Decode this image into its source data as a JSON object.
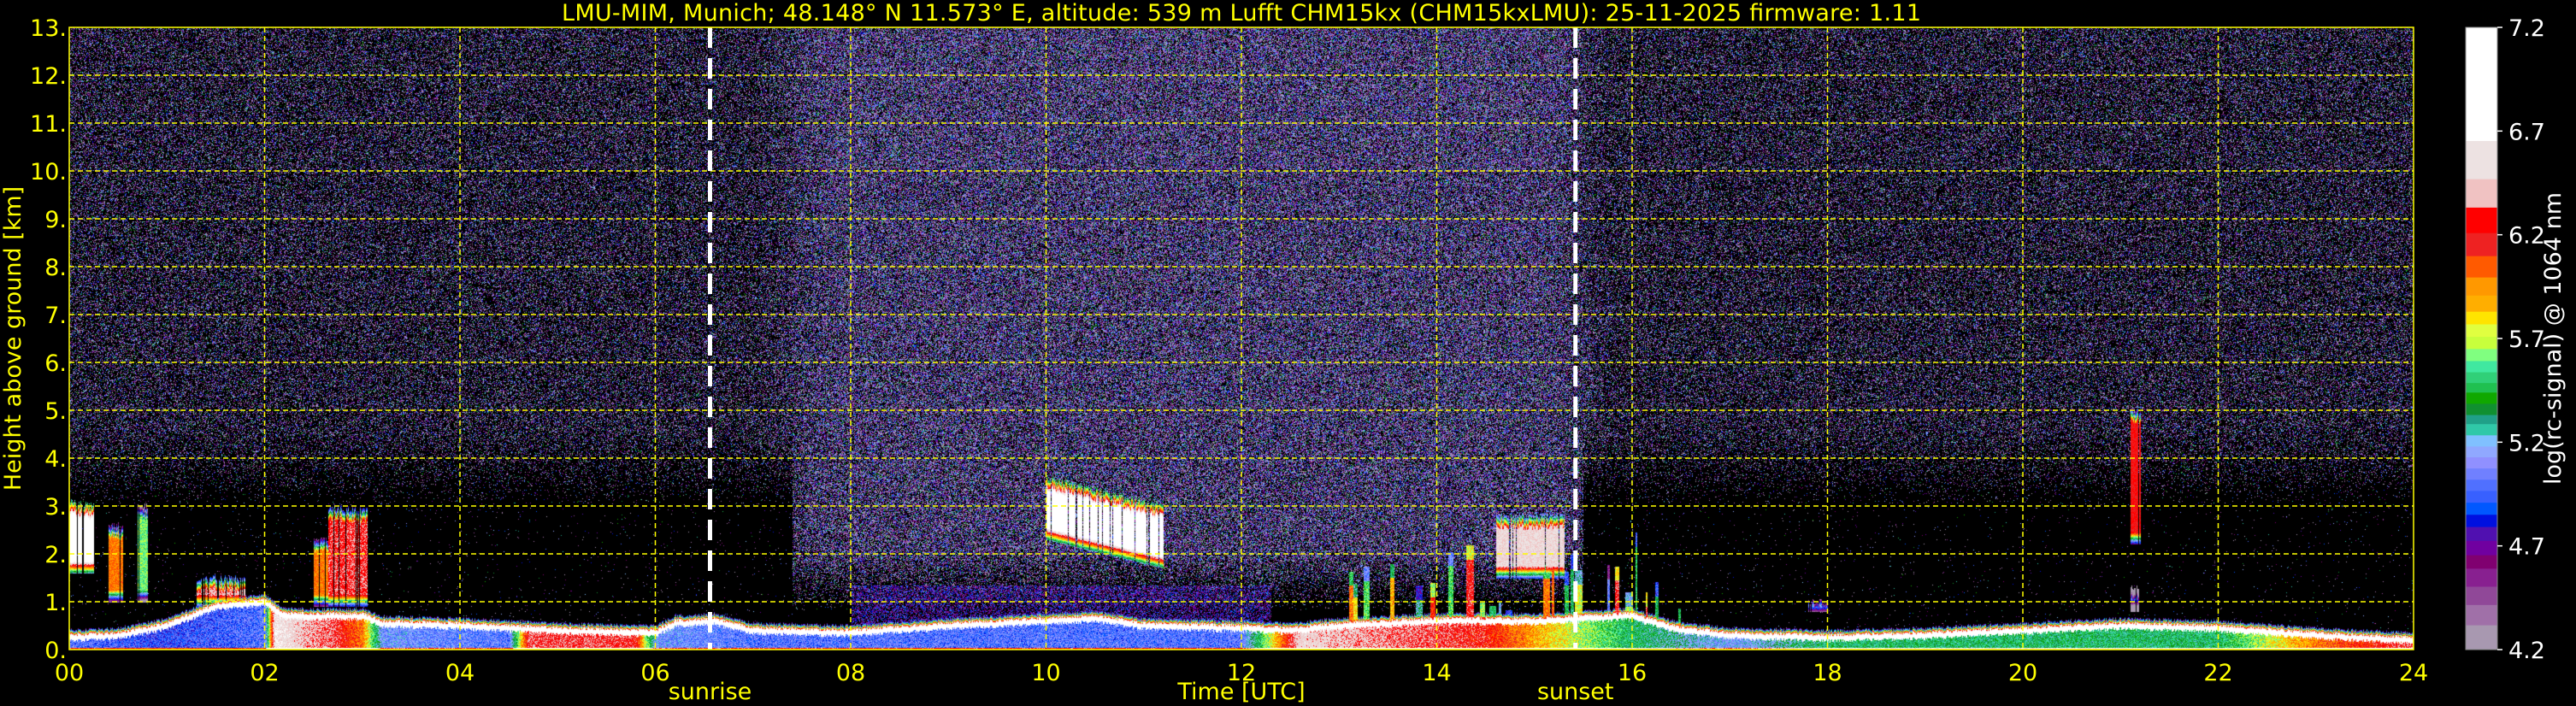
{
  "chart_data": {
    "type": "heatmap",
    "title": "LMU-MIM, Munich; 48.148° N 11.573° E, altitude: 539 m    Lufft CHM15kx (CHM15kxLMU): 25-11-2025    firmware: 1.11",
    "xlabel": "Time [UTC]",
    "ylabel": "Height above ground [km]",
    "xlim": [
      0,
      24
    ],
    "ylim": [
      0,
      13
    ],
    "x_ticks": [
      0,
      2,
      4,
      6,
      8,
      10,
      12,
      14,
      16,
      18,
      20,
      22,
      24
    ],
    "x_tick_labels": [
      "00",
      "02",
      "04",
      "06",
      "08",
      "10",
      "12",
      "14",
      "16",
      "18",
      "20",
      "22",
      "24"
    ],
    "y_ticks": [
      0,
      1,
      2,
      3,
      4,
      5,
      6,
      7,
      8,
      9,
      10,
      11,
      12,
      13
    ],
    "y_tick_labels": [
      "0.",
      "1.",
      "2.",
      "3.",
      "4.",
      "5.",
      "6.",
      "7.",
      "8.",
      "9.",
      "10.",
      "11.",
      "12.",
      "13."
    ],
    "grid": true,
    "grid_color": "#ffff00",
    "background_color": "#000000",
    "markers": [
      {
        "label": "sunrise",
        "time": 6.56,
        "color": "#ffffff"
      },
      {
        "label": "sunset",
        "time": 15.42,
        "color": "#ffffff"
      }
    ],
    "colorbar": {
      "label": "log(rc-signal) @ 1064 nm",
      "range": [
        4.2,
        7.2
      ],
      "ticks": [
        7.2,
        6.7,
        6.2,
        5.7,
        5.2,
        4.7,
        4.2
      ],
      "tick_labels": [
        "7.2",
        "6.7",
        "6.2",
        "5.7",
        "5.2",
        "4.7",
        "4.2"
      ],
      "boundaries": [
        7.2,
        6.652,
        6.468,
        6.331,
        6.208,
        6.097,
        5.994,
        5.907,
        5.829,
        5.768,
        5.708,
        5.649,
        5.591,
        5.537,
        5.485,
        5.439,
        5.385,
        5.331,
        5.287,
        5.233,
        5.179,
        5.127,
        5.073,
        5.019,
        4.965,
        4.908,
        4.85,
        4.791,
        4.724,
        4.655,
        4.59,
        4.503,
        4.415,
        4.317,
        4.2
      ],
      "colors": [
        "#ffffff",
        "#ede2e2",
        "#f0c2c2",
        "#ff0000",
        "#ee2222",
        "#ff5a00",
        "#ff9800",
        "#ffae00",
        "#ffe400",
        "#e0ff40",
        "#c8ff3c",
        "#80ff80",
        "#40e8a0",
        "#30d078",
        "#20c050",
        "#10a800",
        "#109030",
        "#20a088",
        "#30c8a8",
        "#80c0ff",
        "#90a8ff",
        "#9090ff",
        "#7080ff",
        "#5070ff",
        "#3860ff",
        "#0058ff",
        "#0010e0",
        "#5010b0",
        "#7000a0",
        "#800070",
        "#882090",
        "#904898",
        "#a070a8",
        "#a898b0"
      ]
    },
    "boundary_layer_top_km": {
      "time": [
        0,
        0.5,
        1,
        1.5,
        2,
        2.2,
        3,
        3.2,
        4,
        5,
        6,
        6.2,
        6.6,
        7,
        8,
        9,
        9.5,
        10,
        10.5,
        11,
        12,
        12.5,
        13,
        14,
        15,
        16,
        16.5,
        17,
        18,
        19,
        20,
        21,
        22,
        23,
        24
      ],
      "height": [
        0.25,
        0.3,
        0.5,
        0.9,
        1.0,
        0.7,
        0.7,
        0.55,
        0.5,
        0.4,
        0.35,
        0.55,
        0.6,
        0.4,
        0.35,
        0.5,
        0.55,
        0.6,
        0.65,
        0.5,
        0.45,
        0.4,
        0.5,
        0.6,
        0.6,
        0.7,
        0.4,
        0.3,
        0.25,
        0.3,
        0.4,
        0.5,
        0.45,
        0.3,
        0.2
      ]
    },
    "boundary_layer_interior_signal": {
      "time": [
        0,
        1,
        2,
        2.1,
        2.7,
        3,
        3.2,
        4.5,
        4.7,
        5.8,
        6,
        7,
        12,
        12.6,
        14.5,
        15,
        16,
        17,
        18,
        22,
        23,
        24
      ],
      "value": [
        5.0,
        4.9,
        5.0,
        6.6,
        6.3,
        6.0,
        5.1,
        5.0,
        6.3,
        6.25,
        5.1,
        5.0,
        5.0,
        6.5,
        6.2,
        5.9,
        5.4,
        5.1,
        5.4,
        5.4,
        6.0,
        6.3
      ]
    },
    "cloud_features": [
      {
        "t_start": 0.0,
        "t_end": 0.25,
        "base_km": [
          1.6,
          1.6
        ],
        "top_km": [
          3.1,
          3.0
        ],
        "peak": 6.8
      },
      {
        "t_start": 0.4,
        "t_end": 0.55,
        "base_km": [
          1.0,
          1.0
        ],
        "top_km": [
          2.6,
          2.6
        ],
        "peak": 6.0
      },
      {
        "t_start": 0.7,
        "t_end": 0.8,
        "base_km": [
          1.0,
          1.0
        ],
        "top_km": [
          3.0,
          3.0
        ],
        "peak": 5.6
      },
      {
        "t_start": 1.3,
        "t_end": 1.8,
        "base_km": [
          0.9,
          0.9
        ],
        "top_km": [
          1.5,
          1.5
        ],
        "peak": 6.4
      },
      {
        "t_start": 2.5,
        "t_end": 2.65,
        "base_km": [
          0.9,
          0.9
        ],
        "top_km": [
          2.3,
          2.3
        ],
        "peak": 6.0
      },
      {
        "t_start": 2.65,
        "t_end": 3.05,
        "base_km": [
          0.9,
          0.9
        ],
        "top_km": [
          3.0,
          2.9
        ],
        "peak": 6.3
      },
      {
        "t_start": 10.0,
        "t_end": 11.2,
        "base_km": [
          2.3,
          1.7
        ],
        "top_km": [
          3.6,
          3.0
        ],
        "peak": 6.8
      },
      {
        "t_start": 14.6,
        "t_end": 15.3,
        "base_km": [
          1.5,
          1.5
        ],
        "top_km": [
          2.8,
          2.8
        ],
        "peak": 6.5
      },
      {
        "t_start": 17.8,
        "t_end": 18.0,
        "base_km": [
          0.8,
          0.8
        ],
        "top_km": [
          1.0,
          1.0
        ],
        "peak": 6.0
      },
      {
        "t_start": 21.1,
        "t_end": 21.2,
        "base_km": [
          2.2,
          2.2
        ],
        "top_km": [
          5.0,
          5.0
        ],
        "peak": 6.2
      },
      {
        "t_start": 21.1,
        "t_end": 21.2,
        "base_km": [
          0.8,
          0.8
        ],
        "top_km": [
          1.3,
          1.3
        ],
        "peak": 5.0
      }
    ],
    "precipitation_streaks": {
      "t_start": 12.9,
      "t_end": 16.5,
      "top_km_range": [
        0.8,
        2.6
      ],
      "value_range": [
        5.0,
        6.3
      ]
    }
  }
}
